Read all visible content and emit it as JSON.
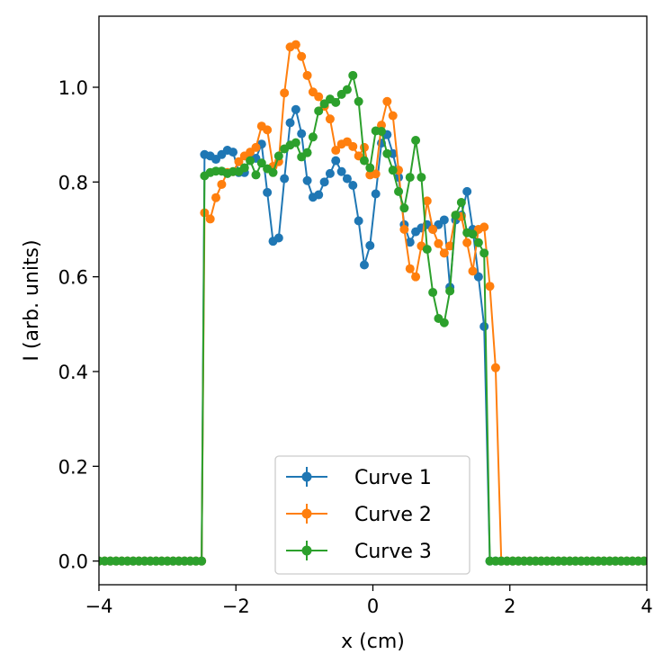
{
  "chart_data": {
    "type": "line",
    "title": "",
    "xlabel": "x (cm)",
    "ylabel": "I (arb. units)",
    "xlim": [
      -4,
      4
    ],
    "ylim": [
      -0.05,
      1.15
    ],
    "xticks": [
      -4,
      -2,
      0,
      2,
      4
    ],
    "xtick_labels": [
      "−4",
      "−2",
      "0",
      "2",
      "4"
    ],
    "yticks": [
      0.0,
      0.2,
      0.4,
      0.6,
      0.8,
      1.0
    ],
    "ytick_labels": [
      "0.0",
      "0.2",
      "0.4",
      "0.6",
      "0.8",
      "1.0"
    ],
    "grid": false,
    "legend_position": "lower-center",
    "series": [
      {
        "name": "Curve 1",
        "color": "#1f77b4",
        "x": [
          -2.458,
          -2.375,
          -2.292,
          -2.208,
          -2.125,
          -2.042,
          -1.958,
          -1.875,
          -1.792,
          -1.708,
          -1.625,
          -1.542,
          -1.458,
          -1.375,
          -1.292,
          -1.208,
          -1.125,
          -1.042,
          -0.958,
          -0.875,
          -0.792,
          -0.708,
          -0.625,
          -0.542,
          -0.458,
          -0.375,
          -0.292,
          -0.208,
          -0.125,
          -0.042,
          0.042,
          0.125,
          0.208,
          0.292,
          0.375,
          0.458,
          0.542,
          0.625,
          0.708,
          0.792,
          0.875,
          0.958,
          1.042,
          1.125,
          1.208,
          1.292,
          1.375,
          1.458,
          1.542,
          1.625,
          1.708,
          1.792,
          1.875,
          1.958,
          2.042,
          2.125,
          2.208,
          2.292,
          2.375,
          2.458
        ],
        "y": [
          0.858,
          0.855,
          0.848,
          0.858,
          0.867,
          0.863,
          0.82,
          0.82,
          0.85,
          0.85,
          0.88,
          0.778,
          0.675,
          0.682,
          0.807,
          0.925,
          0.953,
          0.902,
          0.803,
          0.768,
          0.773,
          0.8,
          0.818,
          0.845,
          0.822,
          0.807,
          0.793,
          0.718,
          0.625,
          0.666,
          0.775,
          0.882,
          0.9,
          0.86,
          0.81,
          0.71,
          0.673,
          0.695,
          0.703,
          0.71,
          0.7,
          0.71,
          0.72,
          0.578,
          0.72,
          0.73,
          0.78,
          0.7,
          0.6,
          0.495,
          0.0,
          0.0,
          0.0,
          0.0,
          0.0,
          0.0,
          0.0,
          0.0,
          0.0,
          0.0
        ]
      },
      {
        "name": "Curve 2",
        "color": "#ff7f0e",
        "x": [
          -2.458,
          -2.375,
          -2.292,
          -2.208,
          -2.125,
          -2.042,
          -1.958,
          -1.875,
          -1.792,
          -1.708,
          -1.625,
          -1.542,
          -1.458,
          -1.375,
          -1.292,
          -1.208,
          -1.125,
          -1.042,
          -0.958,
          -0.875,
          -0.792,
          -0.708,
          -0.625,
          -0.542,
          -0.458,
          -0.375,
          -0.292,
          -0.208,
          -0.125,
          -0.042,
          0.042,
          0.125,
          0.208,
          0.292,
          0.375,
          0.458,
          0.542,
          0.625,
          0.708,
          0.792,
          0.875,
          0.958,
          1.042,
          1.125,
          1.208,
          1.292,
          1.375,
          1.458,
          1.542,
          1.625,
          1.708,
          1.792,
          1.875,
          1.958,
          2.042,
          2.125,
          2.208,
          2.292,
          2.375,
          2.458
        ],
        "y": [
          0.735,
          0.722,
          0.767,
          0.795,
          0.82,
          0.822,
          0.843,
          0.855,
          0.863,
          0.873,
          0.918,
          0.91,
          0.833,
          0.843,
          0.988,
          1.085,
          1.09,
          1.065,
          1.025,
          0.99,
          0.98,
          0.96,
          0.933,
          0.867,
          0.88,
          0.885,
          0.875,
          0.855,
          0.873,
          0.815,
          0.817,
          0.92,
          0.97,
          0.94,
          0.825,
          0.7,
          0.617,
          0.6,
          0.665,
          0.76,
          0.7,
          0.67,
          0.65,
          0.665,
          0.73,
          0.727,
          0.672,
          0.612,
          0.7,
          0.705,
          0.58,
          0.408,
          0.0,
          0.0,
          0.0,
          0.0,
          0.0,
          0.0,
          0.0,
          0.0
        ]
      },
      {
        "name": "Curve 3",
        "color": "#2ca02c",
        "x": [
          -2.458,
          -2.375,
          -2.292,
          -2.208,
          -2.125,
          -2.042,
          -1.958,
          -1.875,
          -1.792,
          -1.708,
          -1.625,
          -1.542,
          -1.458,
          -1.375,
          -1.292,
          -1.208,
          -1.125,
          -1.042,
          -0.958,
          -0.875,
          -0.792,
          -0.708,
          -0.625,
          -0.542,
          -0.458,
          -0.375,
          -0.292,
          -0.208,
          -0.125,
          -0.042,
          0.042,
          0.125,
          0.208,
          0.292,
          0.375,
          0.458,
          0.542,
          0.625,
          0.708,
          0.792,
          0.875,
          0.958,
          1.042,
          1.125,
          1.208,
          1.292,
          1.375,
          1.458,
          1.542,
          1.625,
          1.708,
          1.792,
          1.875,
          1.958,
          2.042,
          2.125,
          2.208,
          2.292,
          2.375,
          2.458
        ],
        "y": [
          0.813,
          0.82,
          0.823,
          0.823,
          0.818,
          0.822,
          0.822,
          0.83,
          0.845,
          0.815,
          0.84,
          0.828,
          0.82,
          0.855,
          0.87,
          0.878,
          0.883,
          0.853,
          0.862,
          0.895,
          0.95,
          0.965,
          0.975,
          0.968,
          0.985,
          0.995,
          1.025,
          0.97,
          0.845,
          0.83,
          0.908,
          0.907,
          0.86,
          0.825,
          0.78,
          0.745,
          0.81,
          0.888,
          0.81,
          0.658,
          0.567,
          0.512,
          0.503,
          0.57,
          0.73,
          0.757,
          0.693,
          0.69,
          0.672,
          0.65,
          0.0,
          0.0,
          0.0,
          0.0,
          0.0,
          0.0,
          0.0,
          0.0,
          0.0,
          0.0
        ]
      }
    ]
  }
}
